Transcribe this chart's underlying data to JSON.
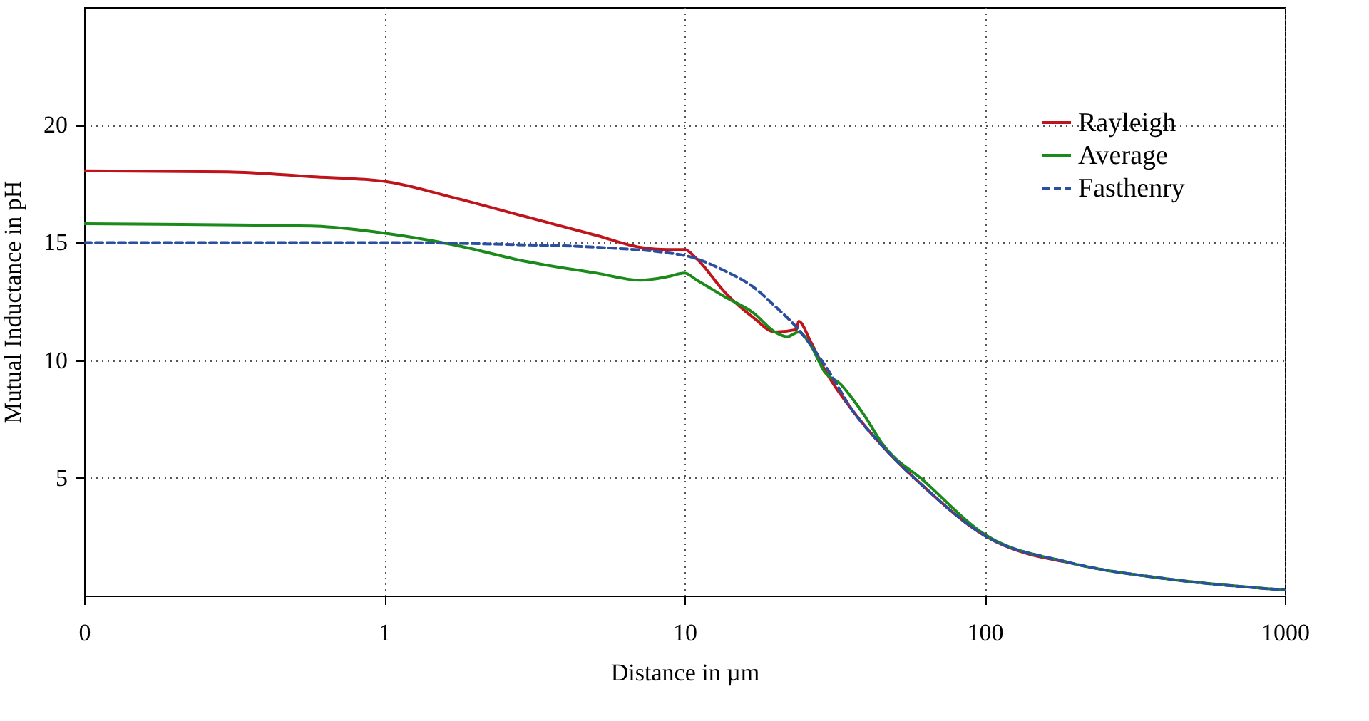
{
  "chart_data": {
    "type": "line",
    "xlabel": "Distance in µm",
    "ylabel": "Mutual Inductance in pH",
    "log": "x",
    "xlim": [
      0.1,
      1000
    ],
    "xticks": [
      {
        "value": 0.1,
        "label": "0"
      },
      1,
      10,
      100,
      1000
    ],
    "ylim": [
      0,
      25
    ],
    "yticks": [
      5,
      10,
      15,
      20
    ],
    "grid": true,
    "legend": "top right",
    "series": [
      {
        "name": "Rayleigh",
        "color": "#c0141c",
        "line_style": "solid",
        "x": [
          0.1,
          0.3,
          0.57,
          1,
          1.71,
          2.95,
          5.1,
          7.1,
          8.8,
          10,
          11,
          13.6,
          17,
          20,
          23.6,
          24,
          26.3,
          29.3,
          36.6,
          45.3,
          63,
          100,
          189
        ],
        "values": [
          18.05,
          18.0,
          17.8,
          17.6,
          16.9,
          16.1,
          15.3,
          14.8,
          14.7,
          14.7,
          14.3,
          12.9,
          11.8,
          11.2,
          11.3,
          11.65,
          10.8,
          9.6,
          7.8,
          6.4,
          4.6,
          2.55,
          1.42
        ]
      },
      {
        "name": "Average",
        "color": "#1a8a1a",
        "line_style": "solid",
        "x": [
          0.1,
          0.57,
          1,
          1.71,
          2.95,
          5.1,
          7.1,
          8.8,
          10,
          11,
          13.6,
          17,
          20,
          22,
          24,
          26.3,
          29.3,
          33,
          36.6,
          40,
          45.3,
          63,
          100,
          189,
          406,
          1000
        ],
        "values": [
          15.8,
          15.7,
          15.4,
          14.9,
          14.2,
          13.7,
          13.4,
          13.55,
          13.7,
          13.4,
          12.7,
          12.0,
          11.2,
          11.0,
          11.2,
          10.65,
          9.5,
          9.0,
          8.3,
          7.6,
          6.5,
          4.85,
          2.6,
          1.42,
          0.71,
          0.24
        ]
      },
      {
        "name": "Fasthenry",
        "color": "#2b4fa0",
        "line_style": "dashed",
        "x": [
          0.1,
          1,
          2.95,
          5.1,
          10,
          13.6,
          17,
          20,
          23.6,
          29.3,
          36.6,
          45.3,
          63,
          100,
          189,
          406,
          1000
        ],
        "values": [
          15.0,
          15.0,
          14.9,
          14.8,
          14.45,
          13.8,
          13.1,
          12.3,
          11.4,
          9.8,
          7.8,
          6.4,
          4.6,
          2.55,
          1.42,
          0.71,
          0.24
        ]
      }
    ]
  }
}
